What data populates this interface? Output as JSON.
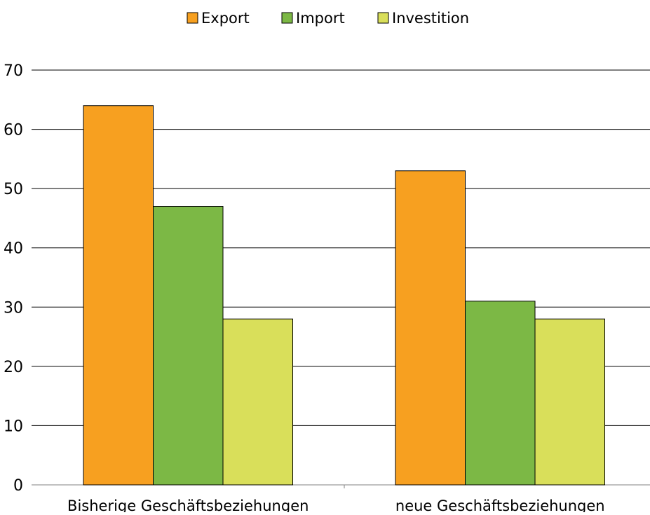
{
  "chart_data": {
    "type": "bar",
    "title": "",
    "xlabel": "",
    "ylabel": "",
    "categories": [
      "Bisherige Geschäftsbeziehungen",
      "neue Geschäftsbeziehungen"
    ],
    "series": [
      {
        "name": "Export",
        "values": [
          64,
          53
        ],
        "color": "#f7a020"
      },
      {
        "name": "Import",
        "values": [
          47,
          31
        ],
        "color": "#7cb845"
      },
      {
        "name": "Investition",
        "values": [
          28,
          28
        ],
        "color": "#d9df5a"
      }
    ],
    "ylim": [
      0,
      70
    ],
    "yticks": [
      0,
      10,
      20,
      30,
      40,
      50,
      60,
      70
    ],
    "grid": true,
    "legend_position": "top-center"
  }
}
